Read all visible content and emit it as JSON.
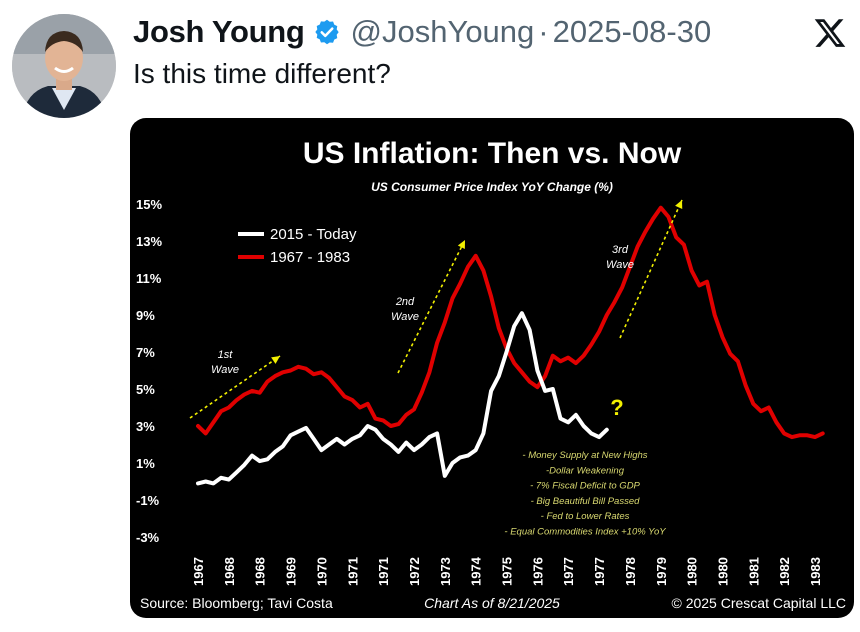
{
  "tweet": {
    "author_name": "Josh Young",
    "handle": "@JoshYoung",
    "separator": "·",
    "date": "2025-08-30",
    "text": "Is this time different?",
    "verified_color": "#1d9bf0"
  },
  "chart_data": {
    "type": "line",
    "title": "US Inflation: Then vs. Now",
    "subtitle": "US Consumer Price Index YoY Change (%)",
    "y_tick_labels": [
      "15%",
      "13%",
      "11%",
      "9%",
      "7%",
      "5%",
      "3%",
      "1%",
      "-1%",
      "-3%"
    ],
    "ylim": [
      -3,
      15
    ],
    "x_tick_labels": [
      "1967",
      "1968",
      "1968",
      "1969",
      "1970",
      "1971",
      "1971",
      "1972",
      "1973",
      "1974",
      "1975",
      "1976",
      "1977",
      "1977",
      "1978",
      "1979",
      "1980",
      "1980",
      "1981",
      "1982",
      "1983"
    ],
    "series": [
      {
        "name": "2015 - Today",
        "color": "#ffffff",
        "x": [
          0,
          0.25,
          0.5,
          0.75,
          1,
          1.25,
          1.5,
          1.75,
          2,
          2.25,
          2.5,
          2.75,
          3,
          3.25,
          3.5,
          3.75,
          4,
          4.25,
          4.5,
          4.75,
          5,
          5.25,
          5.5,
          5.75,
          6,
          6.25,
          6.5,
          6.75,
          7,
          7.25,
          7.5,
          7.75,
          8,
          8.25,
          8.5,
          8.75,
          9,
          9.25,
          9.5,
          9.75,
          10,
          10.25,
          10.5,
          10.75,
          11,
          11.25,
          11.5,
          11.75,
          12,
          12.25,
          12.5,
          12.75,
          13,
          13.25
        ],
        "values": [
          -0.1,
          0.0,
          -0.1,
          0.2,
          0.1,
          0.5,
          0.9,
          1.4,
          1.1,
          1.2,
          1.6,
          1.9,
          2.5,
          2.7,
          2.9,
          2.3,
          1.7,
          2.0,
          2.3,
          2.0,
          2.3,
          2.5,
          3.0,
          2.8,
          2.3,
          2.0,
          1.6,
          2.1,
          1.7,
          2.0,
          2.4,
          2.6,
          0.3,
          1.0,
          1.3,
          1.4,
          1.7,
          2.6,
          4.9,
          5.7,
          7.0,
          8.4,
          9.1,
          8.2,
          6.0,
          4.9,
          5.0,
          3.4,
          3.2,
          3.6,
          3.0,
          2.6,
          2.4,
          2.8
        ]
      },
      {
        "name": "1967 - 1983",
        "color": "#e00000",
        "x": [
          0,
          0.25,
          0.5,
          0.75,
          1,
          1.25,
          1.5,
          1.75,
          2,
          2.25,
          2.5,
          2.75,
          3,
          3.25,
          3.5,
          3.75,
          4,
          4.25,
          4.5,
          4.75,
          5,
          5.25,
          5.5,
          5.75,
          6,
          6.25,
          6.5,
          6.75,
          7,
          7.25,
          7.5,
          7.75,
          8,
          8.25,
          8.5,
          8.75,
          9,
          9.25,
          9.5,
          9.75,
          10,
          10.25,
          10.5,
          10.75,
          11,
          11.25,
          11.5,
          11.75,
          12,
          12.25,
          12.5,
          12.75,
          13,
          13.25,
          13.5,
          13.75,
          14,
          14.25,
          14.5,
          14.75,
          15,
          15.25,
          15.5,
          15.75,
          16,
          16.25,
          16.5,
          16.75,
          17,
          17.25,
          17.5,
          17.75,
          18,
          18.25,
          18.5,
          18.75,
          19,
          19.25,
          19.5,
          19.75,
          20,
          20.25
        ],
        "values": [
          3.0,
          2.6,
          3.2,
          3.8,
          4.0,
          4.4,
          4.7,
          4.9,
          4.8,
          5.4,
          5.7,
          5.9,
          6.0,
          6.2,
          6.1,
          5.8,
          5.9,
          5.6,
          5.1,
          4.6,
          4.4,
          4.0,
          4.2,
          3.4,
          3.3,
          3.0,
          3.1,
          3.6,
          3.9,
          4.8,
          5.9,
          7.5,
          8.6,
          9.9,
          10.7,
          11.6,
          12.2,
          11.4,
          10.0,
          8.3,
          7.2,
          6.4,
          5.9,
          5.4,
          5.1,
          5.7,
          6.8,
          6.5,
          6.7,
          6.4,
          6.8,
          7.4,
          8.1,
          9.0,
          9.7,
          10.5,
          11.6,
          12.7,
          13.5,
          14.2,
          14.8,
          14.3,
          13.2,
          12.8,
          11.4,
          10.6,
          10.8,
          9.0,
          7.8,
          6.9,
          6.5,
          5.2,
          4.2,
          3.8,
          4.0,
          3.2,
          2.6,
          2.4,
          2.5,
          2.5,
          2.4,
          2.6
        ]
      }
    ],
    "annotations": [
      "1st\nWave",
      "2nd\nWave",
      "3rd\nWave",
      "?"
    ],
    "notes": [
      "- Money Supply at New Highs",
      "-Dollar Weakening",
      "- 7% Fiscal Deficit to GDP",
      "- Big Beautiful Bill Passed",
      "- Fed to Lower Rates",
      "- Equal Commodities Index +10% YoY"
    ],
    "source": "Source: Bloomberg; Tavi Costa",
    "chart_as_of": "Chart As of 8/21/2025",
    "copyright": "© 2025 Crescat Capital LLC",
    "colors": {
      "background": "#000000",
      "accent_yellow": "#f2f000",
      "note_yellow": "#d8d870"
    }
  }
}
